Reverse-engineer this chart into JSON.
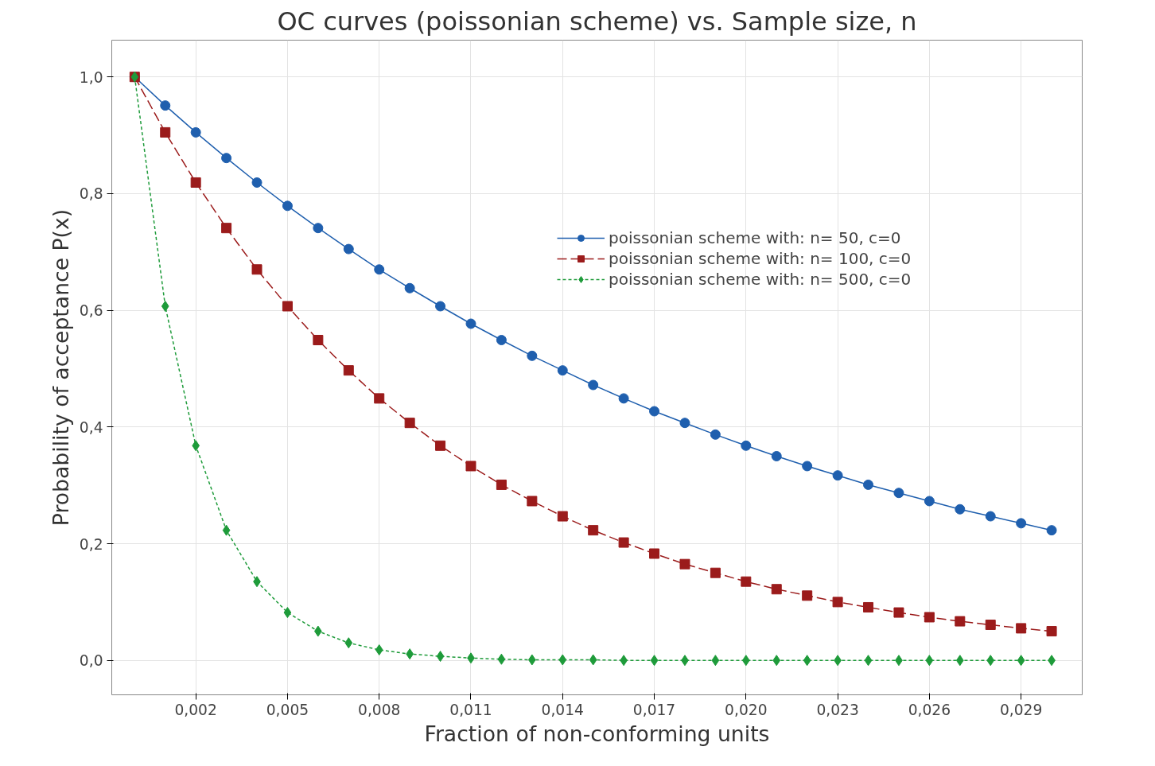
{
  "chart_data": {
    "type": "line",
    "title": "OC curves (poissonian scheme) vs. Sample size, n",
    "xlabel": "Fraction of non-conforming units",
    "ylabel": "Probability of acceptance P(x)",
    "x": [
      0,
      0.001,
      0.002,
      0.003,
      0.004,
      0.005,
      0.006,
      0.007,
      0.008,
      0.009,
      0.01,
      0.011,
      0.012,
      0.013,
      0.014,
      0.015,
      0.016,
      0.017,
      0.018,
      0.019,
      0.02,
      0.021,
      0.022,
      0.023,
      0.024,
      0.025,
      0.026,
      0.027,
      0.028,
      0.029,
      0.03
    ],
    "series": [
      {
        "name": "poissonian scheme with: n= 50, c=0",
        "color": "#1f5fae",
        "marker": "circle",
        "line_style": "solid",
        "values": [
          1,
          0.951,
          0.905,
          0.861,
          0.819,
          0.779,
          0.741,
          0.705,
          0.67,
          0.638,
          0.607,
          0.577,
          0.549,
          0.522,
          0.497,
          0.472,
          0.449,
          0.427,
          0.407,
          0.387,
          0.368,
          0.35,
          0.333,
          0.317,
          0.301,
          0.287,
          0.273,
          0.259,
          0.247,
          0.235,
          0.223
        ]
      },
      {
        "name": "poissonian scheme with: n= 100, c=0",
        "color": "#9b1b1b",
        "marker": "square",
        "line_style": "dashed",
        "values": [
          1,
          0.905,
          0.819,
          0.741,
          0.67,
          0.607,
          0.549,
          0.497,
          0.449,
          0.407,
          0.368,
          0.333,
          0.301,
          0.273,
          0.247,
          0.223,
          0.202,
          0.183,
          0.165,
          0.15,
          0.135,
          0.122,
          0.111,
          0.1,
          0.091,
          0.082,
          0.074,
          0.067,
          0.061,
          0.055,
          0.05
        ]
      },
      {
        "name": "poissonian scheme with: n= 500, c=0",
        "color": "#1e9b3a",
        "marker": "diamond",
        "line_style": "dotted",
        "values": [
          1,
          0.607,
          0.368,
          0.223,
          0.135,
          0.082,
          0.05,
          0.03,
          0.018,
          0.011,
          0.007,
          0.004,
          0.002,
          0.001,
          0.001,
          0.001,
          0,
          0,
          0,
          0,
          0,
          0,
          0,
          0,
          0,
          0,
          0,
          0,
          0,
          0,
          0
        ]
      }
    ],
    "xlim": [
      -0.00075,
      0.031
    ],
    "ylim": [
      -0.059,
      1.063
    ],
    "xticks": [
      {
        "value": 0.002,
        "label": "0,002"
      },
      {
        "value": 0.005,
        "label": "0,005"
      },
      {
        "value": 0.008,
        "label": "0,008"
      },
      {
        "value": 0.011,
        "label": "0,011"
      },
      {
        "value": 0.014,
        "label": "0,014"
      },
      {
        "value": 0.017,
        "label": "0,017"
      },
      {
        "value": 0.02,
        "label": "0,020"
      },
      {
        "value": 0.023,
        "label": "0,023"
      },
      {
        "value": 0.026,
        "label": "0,026"
      },
      {
        "value": 0.029,
        "label": "0,029"
      }
    ],
    "yticks": [
      {
        "value": 0,
        "label": "0,0"
      },
      {
        "value": 0.2,
        "label": "0,2"
      },
      {
        "value": 0.4,
        "label": "0,4"
      },
      {
        "value": 0.6,
        "label": "0,6"
      },
      {
        "value": 0.8,
        "label": "0,8"
      },
      {
        "value": 1,
        "label": "1,0"
      }
    ],
    "grid": true,
    "legend": "top right"
  }
}
